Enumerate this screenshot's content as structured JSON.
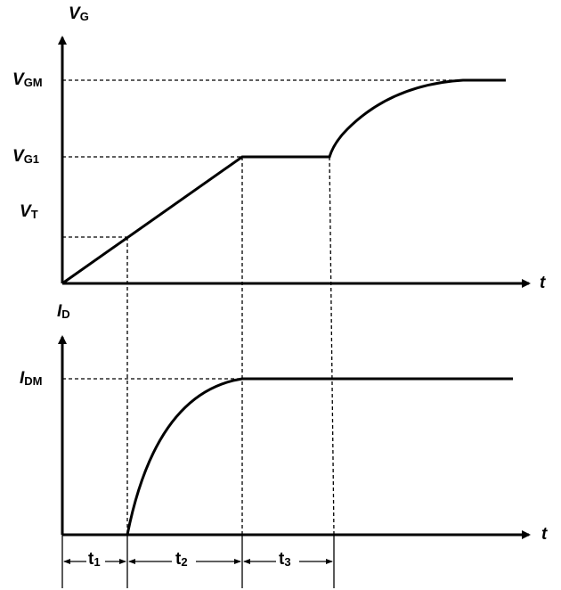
{
  "top_axis": {
    "y_label": {
      "main": "V",
      "sub": "G"
    },
    "x_label": "t",
    "levels": [
      {
        "main": "V",
        "sub": "GM"
      },
      {
        "main": "V",
        "sub": "G1"
      },
      {
        "main": "V",
        "sub": "T"
      }
    ]
  },
  "bottom_axis": {
    "y_label": {
      "main": "I",
      "sub": "D"
    },
    "x_label": "t",
    "levels": [
      {
        "main": "I",
        "sub": "DM"
      }
    ]
  },
  "intervals": [
    {
      "main": "t",
      "sub": "1"
    },
    {
      "main": "t",
      "sub": "2"
    },
    {
      "main": "t",
      "sub": "3"
    }
  ]
}
